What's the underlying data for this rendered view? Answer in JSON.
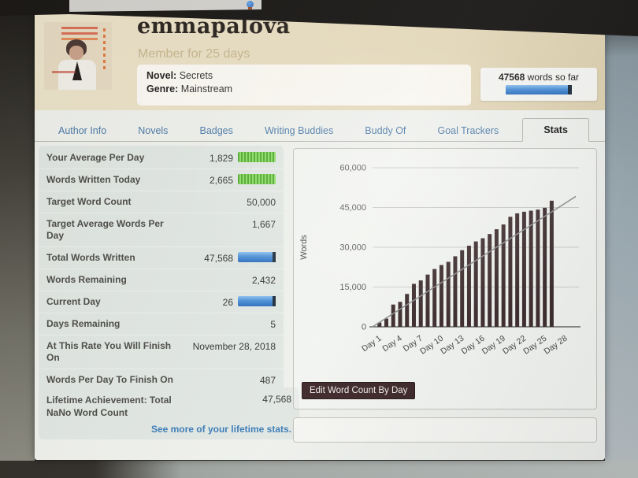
{
  "icons": {
    "browser_tab_icon": "browser-logo-icon"
  },
  "header": {
    "username": "emmapalova",
    "member_since": "Member for 25 days",
    "novel_label": "Novel:",
    "novel_name": "Secrets",
    "genre_label": "Genre:",
    "genre_name": "Mainstream",
    "word_count_bold": "47568",
    "word_count_text": " words so far"
  },
  "tabs": [
    {
      "label": "Author Info",
      "active": false
    },
    {
      "label": "Novels",
      "active": false
    },
    {
      "label": "Badges",
      "active": false
    },
    {
      "label": "Writing Buddies",
      "active": false
    },
    {
      "label": "Buddy Of",
      "active": false
    },
    {
      "label": "Goal Trackers",
      "active": false
    },
    {
      "label": "Stats",
      "active": true
    }
  ],
  "stats_rows": [
    {
      "label": "Your Average Per Day",
      "value": "1,829",
      "bar": "green"
    },
    {
      "label": "Words Written Today",
      "value": "2,665",
      "bar": "green"
    },
    {
      "label": "Target Word Count",
      "value": "50,000",
      "bar": null
    },
    {
      "label": "Target Average Words Per Day",
      "value": "1,667",
      "bar": null
    },
    {
      "label": "Total Words Written",
      "value": "47,568",
      "bar": "blue"
    },
    {
      "label": "Words Remaining",
      "value": "2,432",
      "bar": null
    },
    {
      "label": "Current Day",
      "value": "26",
      "bar": "blue"
    },
    {
      "label": "Days Remaining",
      "value": "5",
      "bar": null
    },
    {
      "label": "At This Rate You Will Finish On",
      "value": "November 28, 2018",
      "bar": null
    },
    {
      "label": "Words Per Day To Finish On Time",
      "value": "487",
      "bar": null
    }
  ],
  "lifetime": {
    "label": "Lifetime Achievement: Total NaNo Word Count",
    "value": "47,568",
    "link": "See more of your lifetime stats."
  },
  "chart": {
    "edit_button_label": "Edit Word Count By Day"
  },
  "chart_data": {
    "type": "bar",
    "title": "",
    "ylabel": "Words",
    "days": [
      1,
      2,
      3,
      4,
      5,
      6,
      7,
      8,
      9,
      10,
      11,
      12,
      13,
      14,
      15,
      16,
      17,
      18,
      19,
      20,
      21,
      22,
      23,
      24,
      25,
      26
    ],
    "values": [
      1600,
      3100,
      8400,
      9400,
      12400,
      16200,
      17500,
      19700,
      21800,
      23300,
      24500,
      26600,
      28900,
      30600,
      32200,
      33400,
      35000,
      36800,
      38600,
      41500,
      42800,
      43400,
      43800,
      44200,
      44903,
      47568
    ],
    "y_ticks": [
      {
        "value": 0,
        "label": "0"
      },
      {
        "value": 15000,
        "label": "15,000"
      },
      {
        "value": 30000,
        "label": "30,000"
      },
      {
        "value": 45000,
        "label": "45,000"
      },
      {
        "value": 60000,
        "label": "60,000"
      }
    ],
    "x_ticks": [
      {
        "pos": 1,
        "label": "Day 1"
      },
      {
        "pos": 4,
        "label": "Day 4"
      },
      {
        "pos": 7,
        "label": "Day 7"
      },
      {
        "pos": 10,
        "label": "Day 10"
      },
      {
        "pos": 13,
        "label": "Day 13"
      },
      {
        "pos": 16,
        "label": "Day 16"
      },
      {
        "pos": 19,
        "label": "Day 19"
      },
      {
        "pos": 22,
        "label": "Day 22"
      },
      {
        "pos": 25,
        "label": "Day 25"
      },
      {
        "pos": 28,
        "label": "Day 28"
      }
    ],
    "ylim": [
      0,
      60000
    ],
    "xlim": [
      0,
      29.5
    ],
    "grid": true,
    "legend": false,
    "target_line": {
      "words_per_day": 1667
    },
    "bar_color": "#3a292b",
    "line_color": "#8b8b8b"
  },
  "colors": {
    "header_bg": "#e6dbbe",
    "green_bar": "#5cb33a",
    "blue_bar": "#3f87d4",
    "link": "#3679b5",
    "button_bg": "#3a2426",
    "tab_text": "#4a79a6"
  }
}
